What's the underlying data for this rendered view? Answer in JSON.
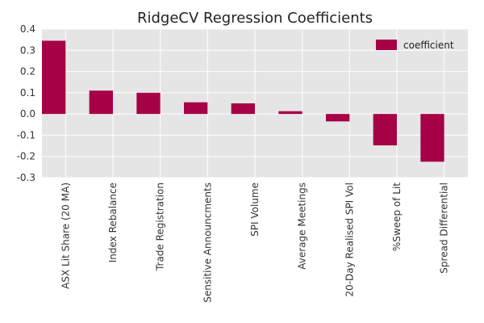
{
  "chart_data": {
    "type": "bar",
    "title": "RidgeCV Regression Coefficients",
    "categories": [
      "ASX Lit Share (20 MA)",
      "Index Rebalance",
      "Trade Registration",
      "Sensitive Announcments",
      "SPI Volume",
      "Average Meetings",
      "20-Day Realised SPI Vol",
      "%Sweep of Lit",
      "Spread Differential"
    ],
    "series": [
      {
        "name": "coefficient",
        "values": [
          0.345,
          0.11,
          0.1,
          0.055,
          0.05,
          0.013,
          -0.035,
          -0.148,
          -0.225
        ]
      }
    ],
    "ylim": [
      -0.3,
      0.4
    ],
    "yticks": [
      "-0.3",
      "-0.2",
      "-0.1",
      "0.0",
      "0.1",
      "0.2",
      "0.3",
      "0.4"
    ],
    "grid": true,
    "legend_position": "top-right",
    "colors": {
      "bar": "#A60047",
      "plot_bg": "#E5E5E5",
      "grid": "#FFFFFF"
    }
  }
}
